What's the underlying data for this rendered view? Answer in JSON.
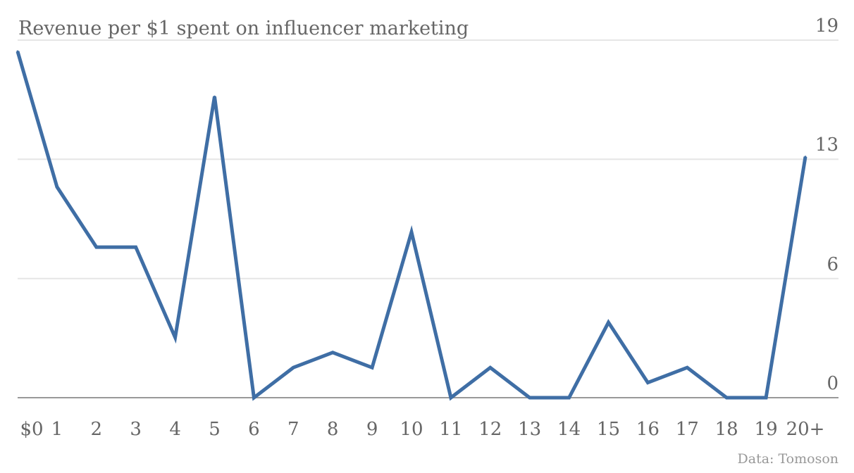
{
  "chart_data": {
    "type": "line",
    "title": "Revenue per $1 spent on influencer marketing",
    "source": "Data: Tomoson",
    "xlabel": "",
    "ylabel": "",
    "categories": [
      "$0",
      "1",
      "2",
      "3",
      "4",
      "5",
      "6",
      "7",
      "8",
      "9",
      "10",
      "11",
      "12",
      "13",
      "14",
      "15",
      "16",
      "17",
      "18",
      "19",
      "20+"
    ],
    "series": [
      {
        "name": "Revenue per $1",
        "color": "#3f6ea5",
        "values": [
          18.4,
          11.2,
          8.0,
          8.0,
          3.2,
          16.0,
          0,
          1.6,
          2.4,
          1.6,
          8.8,
          0,
          1.6,
          0,
          0,
          4.0,
          0.8,
          1.6,
          0,
          0,
          12.8
        ]
      }
    ],
    "ylim": [
      0,
      19
    ],
    "yticks": [
      0,
      6.33,
      12.67,
      19
    ],
    "ytick_labels": [
      "0",
      "6",
      "13",
      "19"
    ],
    "grid": true,
    "y_axis_position": "right"
  }
}
